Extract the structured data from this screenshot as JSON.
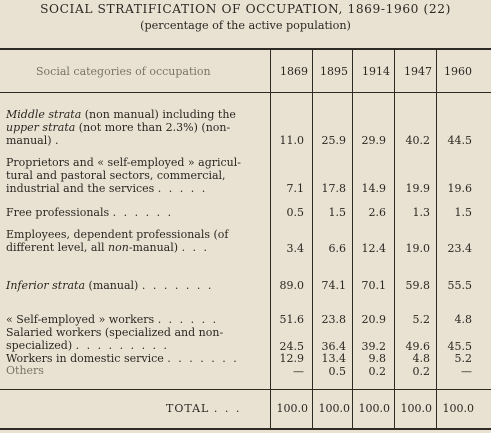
{
  "title": "SOCIAL STRATIFICATION OF OCCUPATION, 1869-1960 (22)",
  "subtitle": "(percentage of the active population)",
  "header": {
    "category_label": "Social categories of occupation",
    "years": [
      "1869",
      "1895",
      "1914",
      "1947",
      "1960"
    ]
  },
  "rows": {
    "middle": {
      "label_it1": "Middle strata",
      "label_1": " (non manual) including the",
      "label_it2": "upper strata",
      "label_2": " (not more than 2.3%) (non-",
      "label_3": "manual) .",
      "values": [
        "11.0",
        "25.9",
        "29.9",
        "40.2",
        "44.5"
      ]
    },
    "proprietors": {
      "line1": "Proprietors and « self-employed » agricul-",
      "line2": "tural and pastoral sectors, commercial,",
      "line3": "industrial and the services",
      "values": [
        "7.1",
        "17.8",
        "14.9",
        "19.9",
        "19.6"
      ]
    },
    "free": {
      "line1": "Free professionals",
      "values": [
        "0.5",
        "1.5",
        "2.6",
        "1.3",
        "1.5"
      ]
    },
    "employees": {
      "line1": "Employees, dependent professionals (of",
      "line2_a": "different level, all ",
      "line2_it": "non",
      "line2_b": "-manual)",
      "values": [
        "3.4",
        "6.6",
        "12.4",
        "19.0",
        "23.4"
      ]
    },
    "inferior": {
      "label_it": "Inferior strata",
      "label": " (manual)",
      "values": [
        "89.0",
        "74.1",
        "70.1",
        "59.8",
        "55.5"
      ]
    },
    "self_employed": {
      "line1": "« Self-employed » workers",
      "values": [
        "51.6",
        "23.8",
        "20.9",
        "5.2",
        "4.8"
      ]
    },
    "salaried": {
      "line1": "Salaried workers (specialized and non-",
      "line2": "specialized)",
      "values": [
        "24.5",
        "36.4",
        "39.2",
        "49.6",
        "45.5"
      ]
    },
    "domestic": {
      "line1": "Workers in domestic service",
      "values": [
        "12.9",
        "13.4",
        "9.8",
        "4.8",
        "5.2"
      ]
    },
    "others": {
      "line1": "Others",
      "values": [
        "—",
        "0.5",
        "0.2",
        "0.2",
        "—"
      ]
    },
    "total": {
      "label": "TOTAL",
      "values": [
        "100.0",
        "100.0",
        "100.0",
        "100.0",
        "100.0"
      ]
    }
  },
  "dots": {
    "d1": ". . . . .",
    "d2": ". . . . . .",
    "d3": ". . .",
    "d4": ". . . . . . .",
    "d5": ". . . . . .",
    "d6": ". . . . . . . . .",
    "d7": ". . . . . . .",
    "d8": ". . . . . . . .",
    "d9": ". . ."
  }
}
